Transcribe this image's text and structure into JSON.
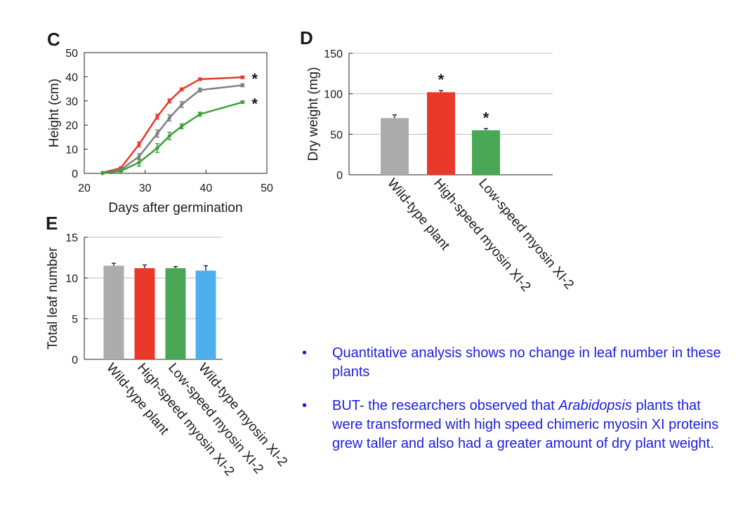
{
  "chart_data": [
    {
      "panel": "C",
      "type": "line",
      "xlabel": "Days after germination",
      "ylabel": "Height (cm)",
      "xlim": [
        20,
        50
      ],
      "ylim": [
        0,
        50
      ],
      "xticks": [
        20,
        30,
        40,
        50
      ],
      "yticks": [
        0,
        10,
        20,
        30,
        40,
        50
      ],
      "x": [
        23,
        26,
        29,
        32,
        34,
        36,
        39,
        46
      ],
      "series": [
        {
          "color": "#e8392b",
          "values": [
            0.3,
            2.2,
            12,
            23.5,
            30,
            34.8,
            39,
            39.8
          ],
          "errors": [
            0.3,
            0.5,
            1.0,
            1.0,
            0.8,
            0.6,
            0.5,
            0.5
          ],
          "annotation": "*"
        },
        {
          "color": "#808080",
          "values": [
            0.1,
            1.5,
            7,
            16.5,
            23,
            28.5,
            34.5,
            36.5
          ],
          "errors": [
            0.2,
            0.5,
            1.2,
            1.5,
            1.3,
            1.2,
            0.8,
            0.6
          ],
          "annotation": ""
        },
        {
          "color": "#3aa13a",
          "values": [
            0,
            1,
            4.5,
            10.5,
            15.5,
            19.5,
            24.5,
            29.5
          ],
          "errors": [
            0.2,
            0.5,
            1.5,
            1.8,
            1.5,
            1.0,
            0.8,
            0.5
          ],
          "annotation": "*"
        }
      ]
    },
    {
      "panel": "D",
      "type": "bar",
      "ylabel": "Dry weight (mg)",
      "ylim": [
        0,
        150
      ],
      "yticks": [
        0,
        50,
        100,
        150
      ],
      "grid": true,
      "categories": [
        "Wild-type plant",
        "High-speed myosin XI-2",
        "Low-speed myosin XI-2"
      ],
      "values": [
        70,
        102,
        55
      ],
      "errors": [
        4,
        2,
        2
      ],
      "colors": [
        "#acacac",
        "#e8392b",
        "#4aa755"
      ],
      "annotations": [
        "",
        "*",
        "*"
      ]
    },
    {
      "panel": "E",
      "type": "bar",
      "ylabel": "Total leaf number",
      "ylim": [
        0,
        15
      ],
      "yticks": [
        0,
        5,
        10,
        15
      ],
      "grid": true,
      "categories": [
        "Wild-type plant",
        "High-speed myosin XI-2",
        "Low-speed myosin XI-2",
        "Wild-type myosin XI-2"
      ],
      "values": [
        11.5,
        11.2,
        11.2,
        10.9
      ],
      "errors": [
        0.3,
        0.4,
        0.2,
        0.6
      ],
      "colors": [
        "#acacac",
        "#e8392b",
        "#4aa755",
        "#4db0ec"
      ],
      "annotations": [
        "",
        "",
        "",
        ""
      ]
    }
  ],
  "bullets": {
    "symbol": "•",
    "items": [
      {
        "text": "Quantitative analysis shows no change in leaf number in these plants"
      },
      {
        "pre": "BUT- the researchers observed that ",
        "italic": "Arabidopsis",
        "post": " plants that were transformed with high speed chimeric myosin XI proteins grew taller and also had a greater amount of dry plant weight."
      }
    ]
  }
}
